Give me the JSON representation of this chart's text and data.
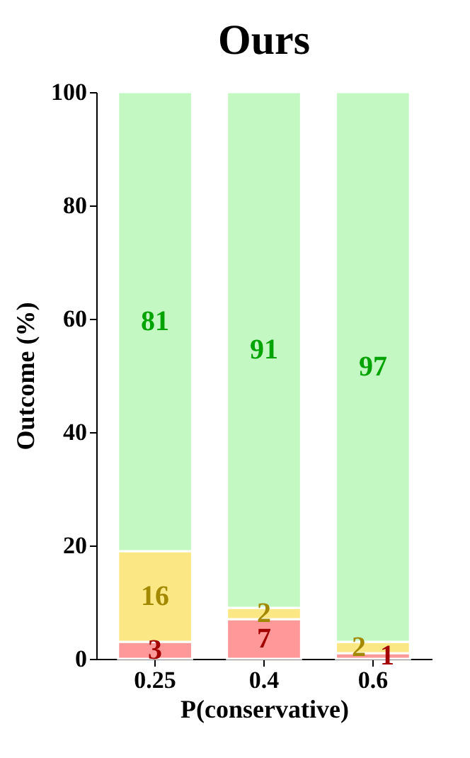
{
  "chart_data": {
    "type": "bar",
    "title": "Ours",
    "xlabel": "P(conservative)",
    "ylabel": "Outcome (%)",
    "categories": [
      "0.25",
      "0.4",
      "0.6"
    ],
    "series": [
      {
        "color": "#ff9999",
        "values": [
          3,
          7,
          1
        ]
      },
      {
        "color": "#fbe885",
        "values": [
          16,
          2,
          2
        ]
      },
      {
        "color": "#c3f8c3",
        "values": [
          81,
          91,
          97
        ]
      }
    ],
    "stacked": true,
    "data_labels": true,
    "ylim": [
      0,
      100
    ],
    "yticks": [
      0,
      20,
      40,
      60,
      80,
      100
    ],
    "grid": false,
    "legend": false
  }
}
